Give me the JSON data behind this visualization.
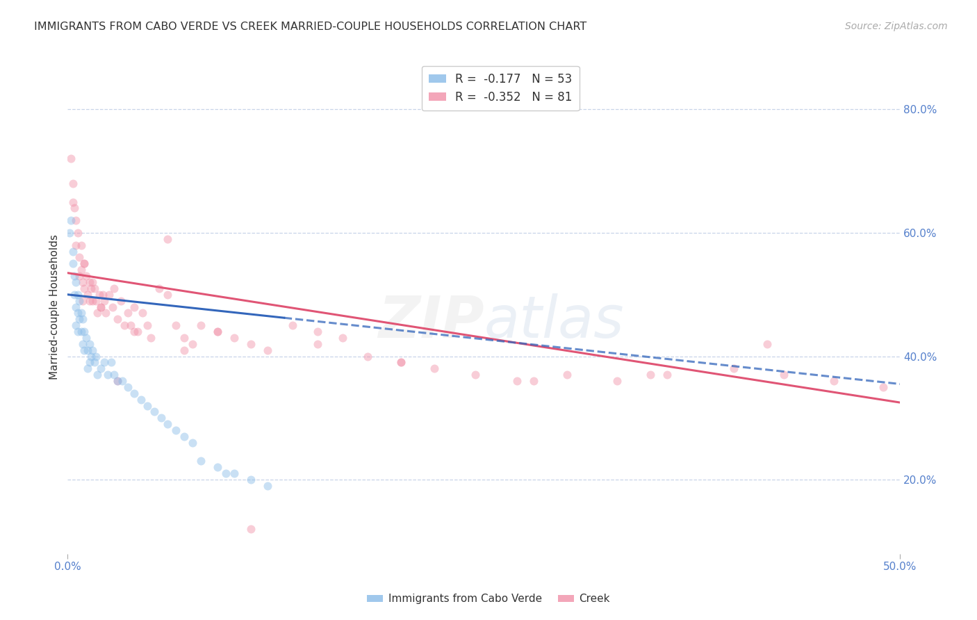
{
  "title": "IMMIGRANTS FROM CABO VERDE VS CREEK MARRIED-COUPLE HOUSEHOLDS CORRELATION CHART",
  "source": "Source: ZipAtlas.com",
  "ylabel": "Married-couple Households",
  "yticks": [
    "80.0%",
    "60.0%",
    "40.0%",
    "20.0%"
  ],
  "ytick_vals": [
    0.8,
    0.6,
    0.4,
    0.2
  ],
  "xlim": [
    0.0,
    0.5
  ],
  "ylim": [
    0.08,
    0.88
  ],
  "cabo_verde_x": [
    0.001,
    0.002,
    0.003,
    0.003,
    0.004,
    0.004,
    0.005,
    0.005,
    0.005,
    0.006,
    0.006,
    0.006,
    0.007,
    0.007,
    0.008,
    0.008,
    0.009,
    0.009,
    0.01,
    0.01,
    0.011,
    0.012,
    0.012,
    0.013,
    0.013,
    0.014,
    0.015,
    0.016,
    0.017,
    0.018,
    0.02,
    0.022,
    0.024,
    0.026,
    0.028,
    0.03,
    0.033,
    0.036,
    0.04,
    0.044,
    0.048,
    0.052,
    0.056,
    0.06,
    0.065,
    0.07,
    0.075,
    0.08,
    0.09,
    0.095,
    0.1,
    0.11,
    0.12
  ],
  "cabo_verde_y": [
    0.6,
    0.62,
    0.57,
    0.55,
    0.53,
    0.5,
    0.52,
    0.48,
    0.45,
    0.5,
    0.47,
    0.44,
    0.49,
    0.46,
    0.47,
    0.44,
    0.46,
    0.42,
    0.44,
    0.41,
    0.43,
    0.41,
    0.38,
    0.42,
    0.39,
    0.4,
    0.41,
    0.39,
    0.4,
    0.37,
    0.38,
    0.39,
    0.37,
    0.39,
    0.37,
    0.36,
    0.36,
    0.35,
    0.34,
    0.33,
    0.32,
    0.31,
    0.3,
    0.29,
    0.28,
    0.27,
    0.26,
    0.23,
    0.22,
    0.21,
    0.21,
    0.2,
    0.19
  ],
  "creek_x": [
    0.002,
    0.003,
    0.003,
    0.004,
    0.005,
    0.005,
    0.006,
    0.007,
    0.007,
    0.008,
    0.008,
    0.009,
    0.009,
    0.01,
    0.01,
    0.011,
    0.012,
    0.013,
    0.013,
    0.014,
    0.015,
    0.015,
    0.016,
    0.017,
    0.018,
    0.019,
    0.02,
    0.021,
    0.022,
    0.023,
    0.025,
    0.027,
    0.028,
    0.03,
    0.032,
    0.034,
    0.036,
    0.038,
    0.04,
    0.042,
    0.045,
    0.048,
    0.05,
    0.055,
    0.06,
    0.065,
    0.07,
    0.075,
    0.08,
    0.09,
    0.1,
    0.11,
    0.12,
    0.135,
    0.15,
    0.165,
    0.18,
    0.2,
    0.22,
    0.245,
    0.27,
    0.3,
    0.33,
    0.36,
    0.4,
    0.43,
    0.46,
    0.49,
    0.03,
    0.06,
    0.09,
    0.15,
    0.2,
    0.28,
    0.35,
    0.42,
    0.01,
    0.02,
    0.04,
    0.07,
    0.11
  ],
  "creek_y": [
    0.72,
    0.68,
    0.65,
    0.64,
    0.62,
    0.58,
    0.6,
    0.56,
    0.53,
    0.58,
    0.54,
    0.52,
    0.49,
    0.55,
    0.51,
    0.53,
    0.5,
    0.52,
    0.49,
    0.51,
    0.52,
    0.49,
    0.51,
    0.49,
    0.47,
    0.5,
    0.48,
    0.5,
    0.49,
    0.47,
    0.5,
    0.48,
    0.51,
    0.46,
    0.49,
    0.45,
    0.47,
    0.45,
    0.48,
    0.44,
    0.47,
    0.45,
    0.43,
    0.51,
    0.59,
    0.45,
    0.43,
    0.42,
    0.45,
    0.44,
    0.43,
    0.42,
    0.41,
    0.45,
    0.44,
    0.43,
    0.4,
    0.39,
    0.38,
    0.37,
    0.36,
    0.37,
    0.36,
    0.37,
    0.38,
    0.37,
    0.36,
    0.35,
    0.36,
    0.5,
    0.44,
    0.42,
    0.39,
    0.36,
    0.37,
    0.42,
    0.55,
    0.48,
    0.44,
    0.41,
    0.12
  ],
  "cabo_verde_color": "#88bbe8",
  "creek_color": "#f090a8",
  "cabo_verde_trend_color": "#3366bb",
  "creek_trend_color": "#e05575",
  "background_color": "#ffffff",
  "grid_color": "#c8d4e8",
  "title_fontsize": 11.5,
  "axis_label_fontsize": 11,
  "tick_fontsize": 11,
  "source_fontsize": 10,
  "marker_size": 75,
  "marker_alpha": 0.45,
  "line_width": 2.2,
  "cabo_trend_x0": 0.0,
  "cabo_trend_x1": 0.5,
  "cabo_trend_y0": 0.5,
  "cabo_trend_y1": 0.355,
  "creek_trend_x0": 0.0,
  "creek_trend_x1": 0.5,
  "creek_trend_y0": 0.535,
  "creek_trend_y1": 0.325
}
